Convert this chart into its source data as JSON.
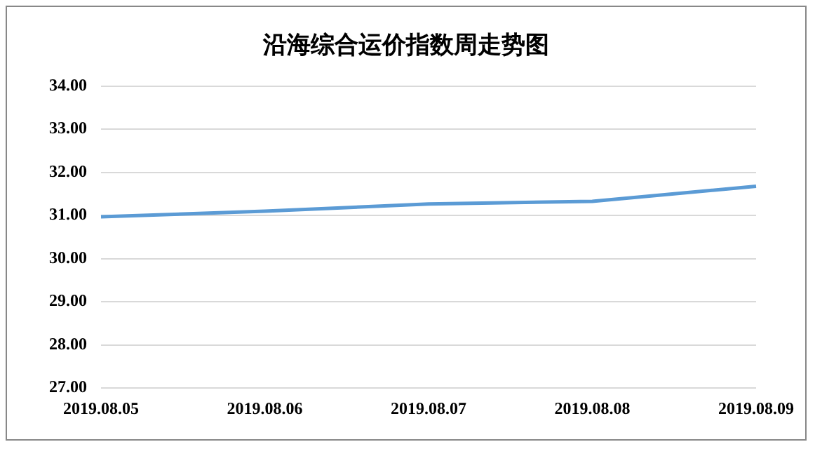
{
  "chart_data": {
    "type": "line",
    "title": "沿海综合运价指数周走势图",
    "categories": [
      "2019.08.05",
      "2019.08.06",
      "2019.08.07",
      "2019.08.08",
      "2019.08.09"
    ],
    "series": [
      {
        "color": "#5b9bd5",
        "values": [
          30.97,
          31.1,
          31.27,
          31.33,
          31.68
        ]
      }
    ],
    "ylim": [
      27,
      34
    ],
    "yticks": [
      {
        "value": 27,
        "label": "27.00"
      },
      {
        "value": 28,
        "label": "28.00"
      },
      {
        "value": 29,
        "label": "29.00"
      },
      {
        "value": 30,
        "label": "30.00"
      },
      {
        "value": 31,
        "label": "31.00"
      },
      {
        "value": 32,
        "label": "32.00"
      },
      {
        "value": 33,
        "label": "33.00"
      },
      {
        "value": 34,
        "label": "34.00"
      }
    ],
    "grid": "y",
    "legend": false,
    "marker": "none",
    "line_style": "solid"
  }
}
